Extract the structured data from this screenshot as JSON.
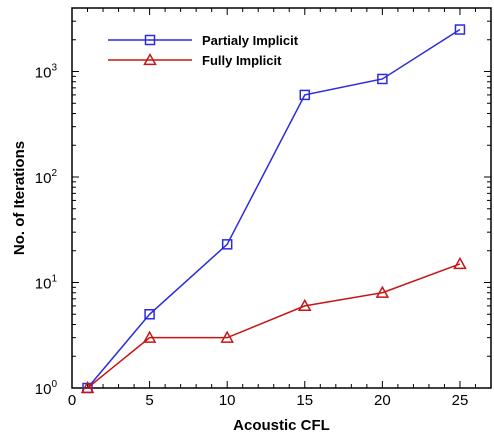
{
  "chart_data": {
    "type": "line",
    "xlabel": "Acoustic CFL",
    "ylabel": "No. of Iterations",
    "xlim": [
      0,
      27
    ],
    "ylim": [
      1,
      4000
    ],
    "y_scale": "log",
    "x_ticks": [
      0,
      5,
      10,
      15,
      20,
      25
    ],
    "y_tick_labels": [
      {
        "value": 1,
        "base": "10",
        "exp": "0"
      },
      {
        "value": 10,
        "base": "10",
        "exp": "1"
      },
      {
        "value": 100,
        "base": "10",
        "exp": "2"
      },
      {
        "value": 1000,
        "base": "10",
        "exp": "3"
      }
    ],
    "grid": false,
    "legend_position": "top-left",
    "series": [
      {
        "name": "Partialy Implicit",
        "color": "#2b2bdf",
        "marker": "square",
        "x": [
          1,
          5,
          10,
          15,
          20,
          25
        ],
        "y": [
          1,
          5,
          23,
          600,
          850,
          2500
        ]
      },
      {
        "name": "Fully Implicit",
        "color": "#c81414",
        "marker": "triangle",
        "x": [
          1,
          5,
          10,
          15,
          20,
          25
        ],
        "y": [
          1,
          3,
          3,
          6,
          8,
          15
        ]
      }
    ]
  }
}
